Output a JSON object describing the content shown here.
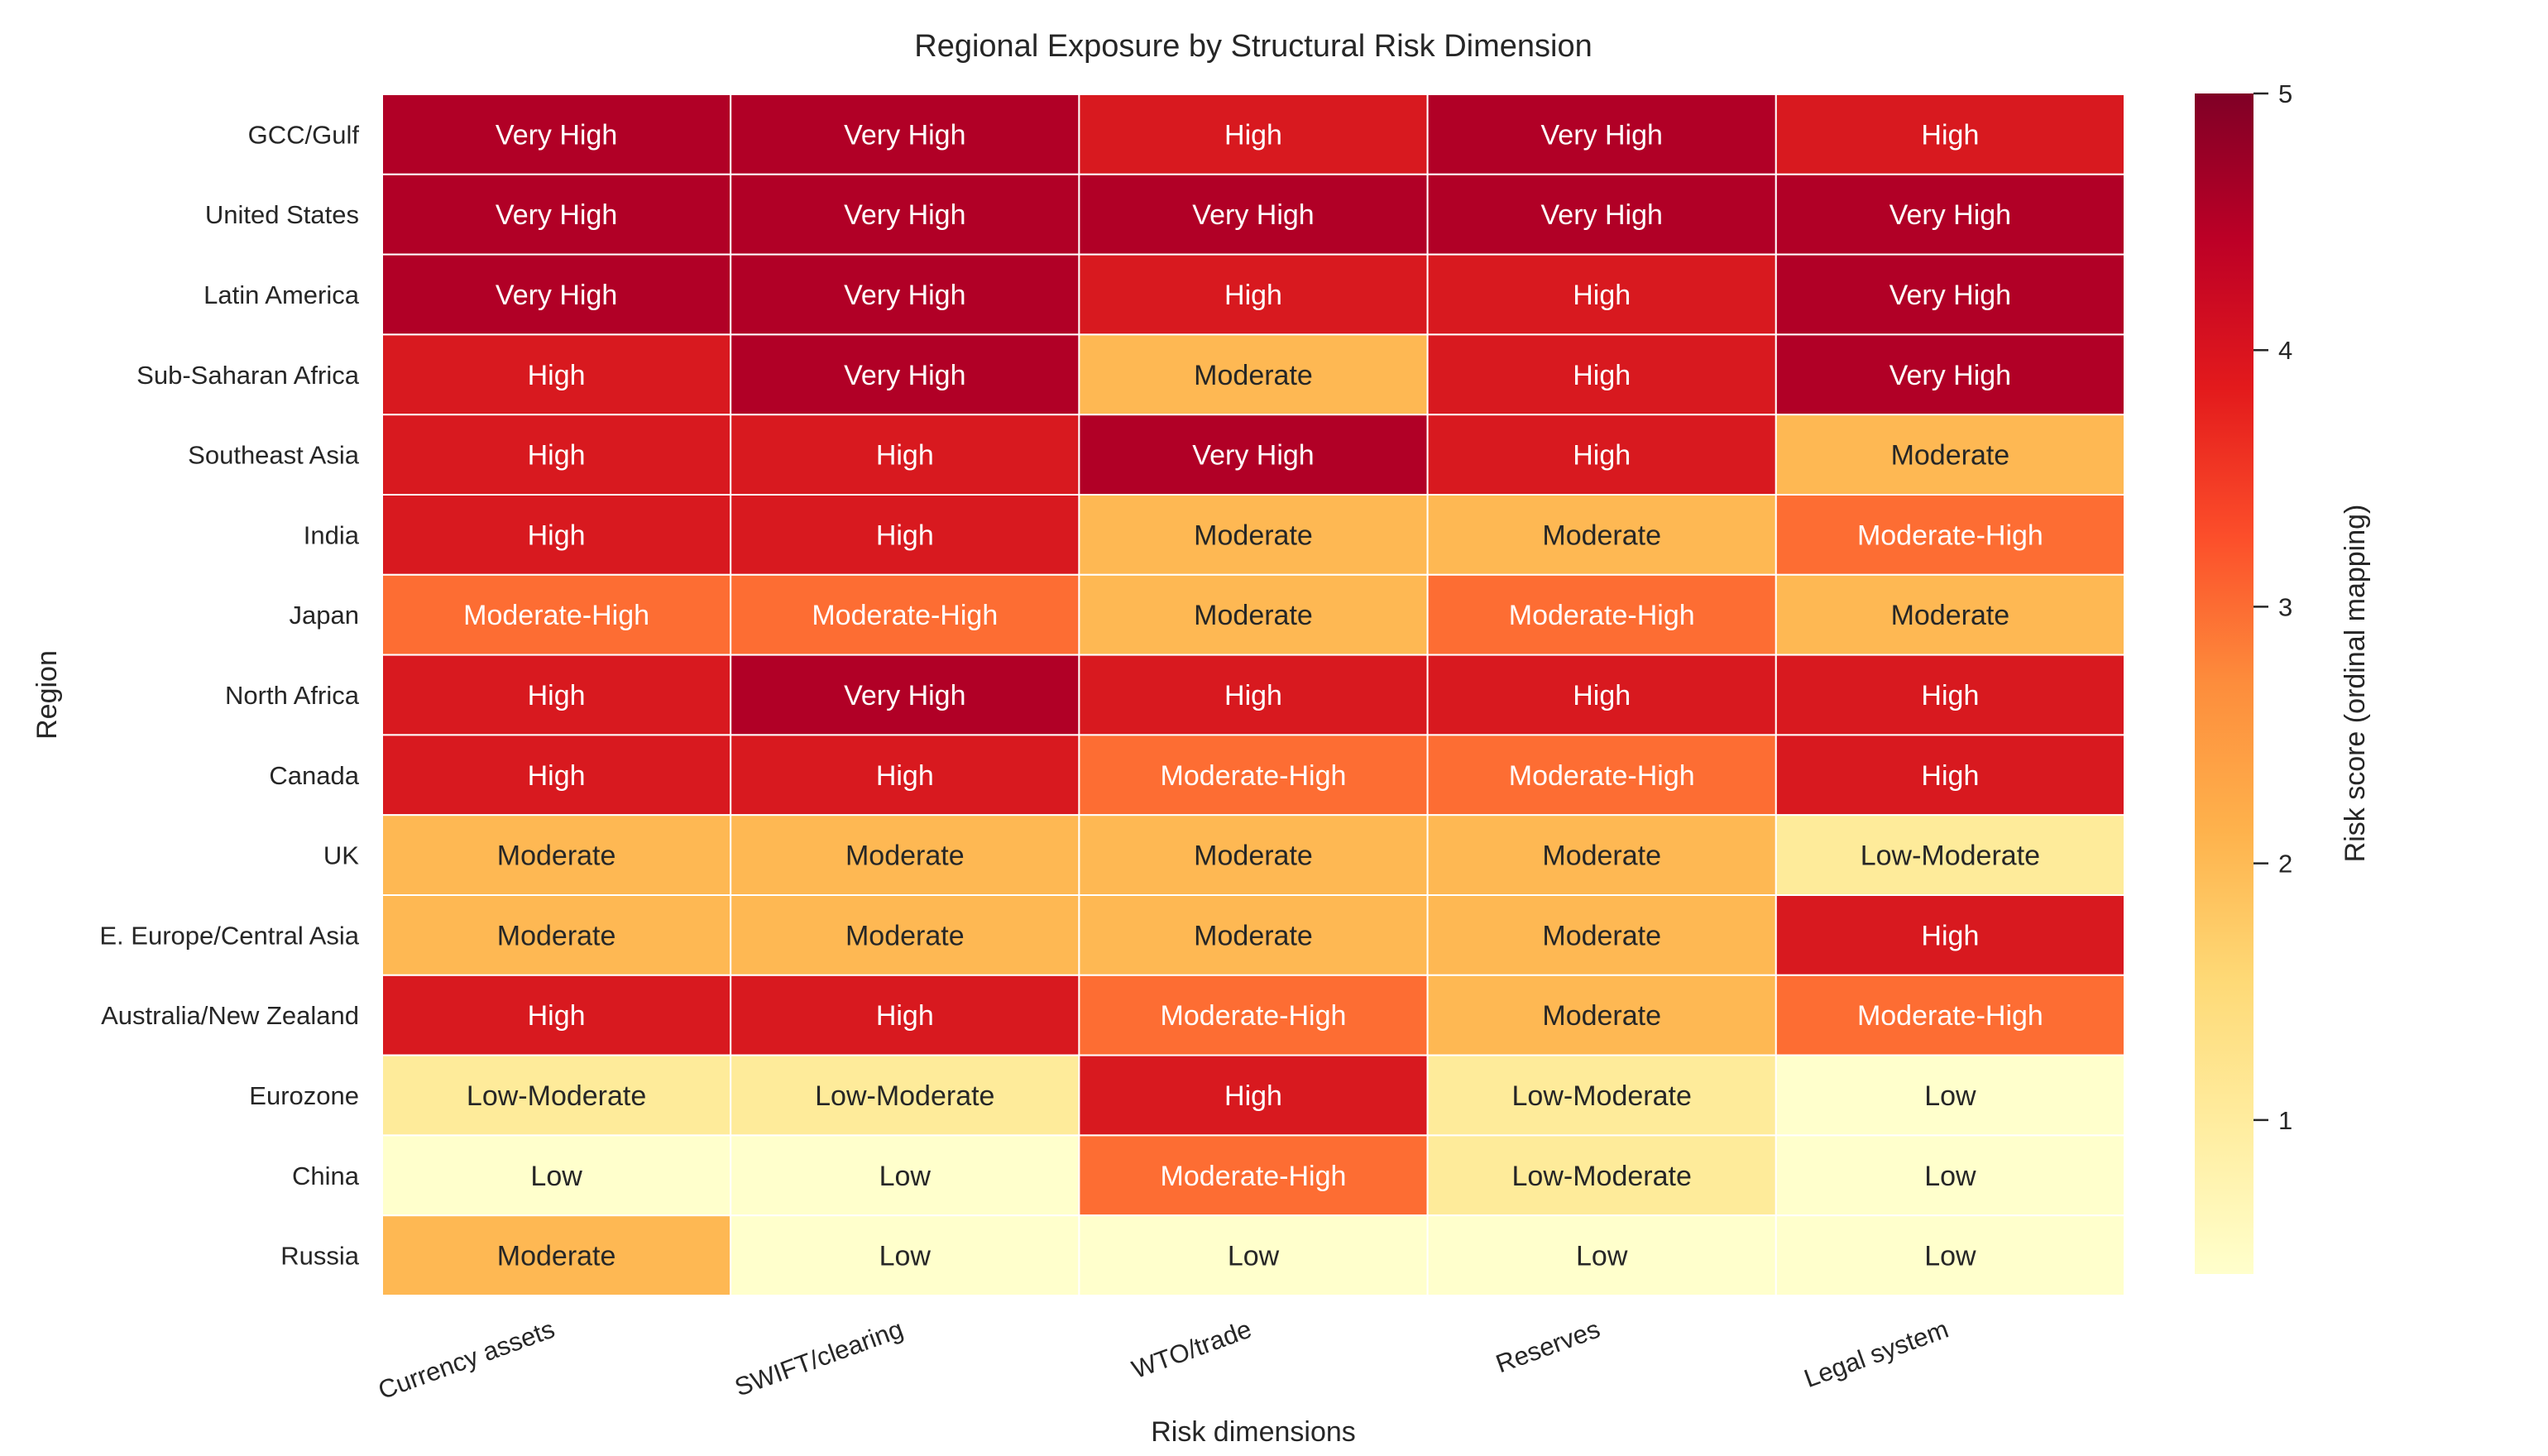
{
  "chart_data": {
    "type": "heatmap",
    "title": "Regional Exposure by Structural Risk Dimension",
    "xlabel": "Risk dimensions",
    "ylabel": "Region",
    "colorbar_label": "Risk score (ordinal mapping)",
    "colormap": "YlOrRd",
    "colorbar_range": [
      0.4,
      5
    ],
    "colorbar_ticks": [
      1,
      2,
      3,
      4,
      5
    ],
    "grid": false,
    "legend": "colorbar right",
    "columns": [
      "Currency assets",
      "SWIFT/clearing",
      "WTO/trade",
      "Reserves",
      "Legal system"
    ],
    "rows": [
      "GCC/Gulf",
      "United States",
      "Latin America",
      "Sub-Saharan Africa",
      "Southeast Asia",
      "India",
      "Japan",
      "North Africa",
      "Canada",
      "UK",
      "E. Europe/Central Asia",
      "Australia/New Zealand",
      "Eurozone",
      "China",
      "Russia"
    ],
    "level_scores": {
      "Low": 0.5,
      "Low-Moderate": 1,
      "Moderate": 2,
      "Moderate-High": 3,
      "High": 4,
      "Very High": 4.5
    },
    "level_colors": {
      "Low": "#ffffcc",
      "Low-Moderate": "#feeb9a",
      "Moderate": "#feb853",
      "Moderate-High": "#fd6d33",
      "High": "#d8191f",
      "Very High": "#b10026"
    },
    "labels": [
      [
        "Very High",
        "Very High",
        "High",
        "Very High",
        "High"
      ],
      [
        "Very High",
        "Very High",
        "Very High",
        "Very High",
        "Very High"
      ],
      [
        "Very High",
        "Very High",
        "High",
        "High",
        "Very High"
      ],
      [
        "High",
        "Very High",
        "Moderate",
        "High",
        "Very High"
      ],
      [
        "High",
        "High",
        "Very High",
        "High",
        "Moderate"
      ],
      [
        "High",
        "High",
        "Moderate",
        "Moderate",
        "Moderate-High"
      ],
      [
        "Moderate-High",
        "Moderate-High",
        "Moderate",
        "Moderate-High",
        "Moderate"
      ],
      [
        "High",
        "Very High",
        "High",
        "High",
        "High"
      ],
      [
        "High",
        "High",
        "Moderate-High",
        "Moderate-High",
        "High"
      ],
      [
        "Moderate",
        "Moderate",
        "Moderate",
        "Moderate",
        "Low-Moderate"
      ],
      [
        "Moderate",
        "Moderate",
        "Moderate",
        "Moderate",
        "High"
      ],
      [
        "High",
        "High",
        "Moderate-High",
        "Moderate",
        "Moderate-High"
      ],
      [
        "Low-Moderate",
        "Low-Moderate",
        "High",
        "Low-Moderate",
        "Low"
      ],
      [
        "Low",
        "Low",
        "Moderate-High",
        "Low-Moderate",
        "Low"
      ],
      [
        "Moderate",
        "Low",
        "Low",
        "Low",
        "Low"
      ]
    ]
  }
}
